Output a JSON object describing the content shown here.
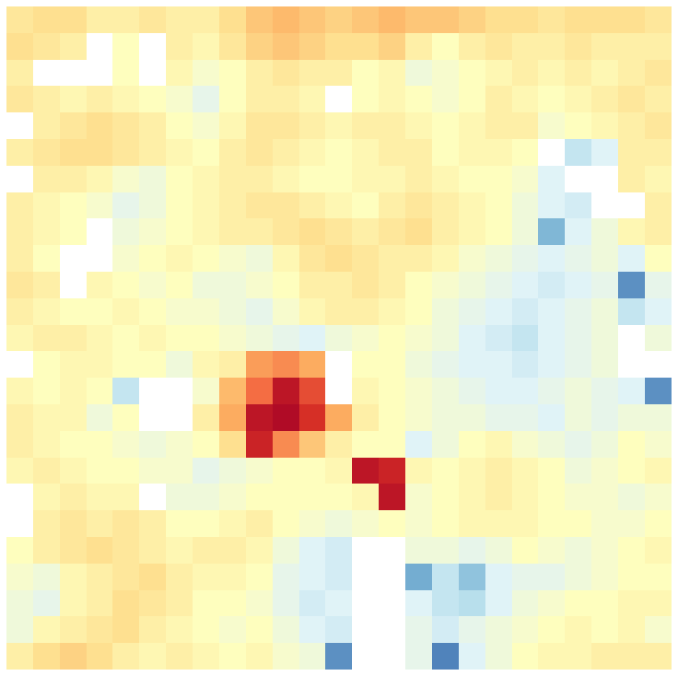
{
  "chart_data": {
    "type": "heatmap",
    "color": "RdYlBu_r",
    "tick_labels": false,
    "color_range": [
      -1,
      1
    ],
    "cells": [
      [
        0.15,
        0.2,
        0.2,
        0.1,
        0.1,
        0.15,
        0.1,
        0.1,
        0.2,
        0.3,
        0.35,
        0.3,
        0.25,
        0.3,
        0.35,
        0.3,
        0.3,
        0.25,
        0.2,
        0.2,
        0.15,
        0.2,
        0.2,
        0.2,
        0.15
      ],
      [
        0.2,
        0.15,
        0.1,
        null,
        0.0,
        null,
        0.1,
        0.05,
        0.15,
        0.25,
        0.3,
        0.25,
        0.2,
        0.2,
        0.25,
        0.1,
        0.0,
        0.1,
        0.15,
        0.1,
        0.1,
        0.15,
        0.1,
        0.1,
        0.1
      ],
      [
        0.1,
        null,
        null,
        null,
        0.0,
        null,
        0.05,
        -0.05,
        0.0,
        0.1,
        0.15,
        0.1,
        0.1,
        0.0,
        0.05,
        -0.1,
        -0.05,
        0.0,
        0.05,
        0.1,
        0.05,
        0.1,
        0.05,
        0.1,
        0.15
      ],
      [
        0.15,
        0.1,
        0.05,
        0.1,
        0.05,
        0.0,
        -0.05,
        -0.15,
        0.0,
        0.1,
        0.1,
        0.05,
        null,
        0.0,
        0.05,
        0.0,
        -0.05,
        0.0,
        0.1,
        0.05,
        0.0,
        0.05,
        0.1,
        0.15,
        0.1
      ],
      [
        null,
        0.1,
        0.15,
        0.2,
        0.15,
        0.1,
        0.0,
        -0.05,
        0.05,
        0.15,
        0.15,
        0.1,
        0.05,
        0.1,
        0.1,
        0.05,
        0.0,
        0.05,
        0.1,
        0.1,
        -0.05,
        0.0,
        0.05,
        0.1,
        0.15
      ],
      [
        0.1,
        0.15,
        0.2,
        0.2,
        0.15,
        0.1,
        0.05,
        0.0,
        0.1,
        0.15,
        0.1,
        0.05,
        0.0,
        0.05,
        0.1,
        0.1,
        0.0,
        0.05,
        0.05,
        0.0,
        null,
        -0.3,
        -0.2,
        0.1,
        0.1
      ],
      [
        null,
        0.1,
        0.1,
        0.05,
        -0.05,
        -0.1,
        0.0,
        0.05,
        0.1,
        0.1,
        0.05,
        0.0,
        0.0,
        0.05,
        0.05,
        0.1,
        0.05,
        0.0,
        0.0,
        -0.05,
        -0.2,
        null,
        null,
        0.1,
        0.05
      ],
      [
        0.1,
        0.05,
        0.0,
        -0.05,
        -0.15,
        -0.1,
        0.0,
        0.05,
        0.1,
        0.15,
        0.15,
        0.1,
        0.05,
        0.0,
        0.1,
        0.15,
        0.1,
        0.05,
        0.0,
        -0.1,
        -0.2,
        -0.25,
        null,
        null,
        0.1
      ],
      [
        0.1,
        0.05,
        0.0,
        null,
        -0.1,
        -0.05,
        0.0,
        0.05,
        0.1,
        0.1,
        0.15,
        0.2,
        0.15,
        0.1,
        0.15,
        0.2,
        0.1,
        0.05,
        0.0,
        -0.1,
        -0.55,
        -0.2,
        -0.1,
        0.05,
        0.1
      ],
      [
        0.1,
        0.0,
        null,
        null,
        -0.05,
        0.0,
        0.05,
        0.0,
        -0.05,
        -0.1,
        0.05,
        0.15,
        0.2,
        0.15,
        0.1,
        0.1,
        0.05,
        -0.05,
        -0.1,
        -0.15,
        -0.2,
        -0.15,
        -0.1,
        -0.2,
        0.0
      ],
      [
        0.15,
        0.1,
        null,
        0.05,
        0.0,
        -0.05,
        0.0,
        -0.1,
        -0.1,
        -0.05,
        0.0,
        0.1,
        0.1,
        0.15,
        0.1,
        0.0,
        -0.05,
        -0.1,
        -0.15,
        -0.2,
        -0.25,
        -0.2,
        -0.15,
        -0.7,
        -0.15
      ],
      [
        0.1,
        0.05,
        0.0,
        0.0,
        0.05,
        0.0,
        -0.05,
        -0.05,
        -0.1,
        -0.15,
        -0.05,
        0.05,
        0.1,
        0.1,
        0.05,
        0.0,
        -0.1,
        -0.15,
        -0.2,
        -0.25,
        -0.2,
        -0.15,
        -0.1,
        -0.3,
        -0.2
      ],
      [
        0.05,
        0.1,
        0.1,
        0.05,
        0.0,
        0.05,
        0.0,
        0.0,
        -0.05,
        -0.1,
        -0.15,
        -0.2,
        -0.1,
        -0.05,
        0.0,
        -0.05,
        -0.1,
        -0.2,
        -0.25,
        -0.3,
        -0.2,
        -0.15,
        -0.1,
        null,
        -0.1
      ],
      [
        null,
        0.0,
        0.05,
        0.05,
        0.0,
        0.0,
        -0.1,
        0.05,
        0.1,
        0.45,
        0.5,
        0.4,
        null,
        0.0,
        0.0,
        -0.1,
        -0.15,
        -0.2,
        -0.2,
        -0.25,
        -0.2,
        -0.15,
        -0.1,
        null,
        null
      ],
      [
        0.05,
        0.0,
        0.05,
        0.0,
        -0.3,
        null,
        null,
        -0.05,
        0.35,
        0.6,
        0.9,
        0.7,
        null,
        0.05,
        0.0,
        -0.05,
        -0.1,
        -0.15,
        -0.2,
        -0.2,
        -0.15,
        -0.1,
        -0.15,
        -0.2,
        -0.7
      ],
      [
        0.1,
        0.05,
        0.05,
        -0.1,
        0.0,
        null,
        null,
        0.1,
        0.4,
        0.9,
        0.95,
        0.8,
        0.4,
        0.1,
        0.0,
        -0.05,
        -0.1,
        -0.1,
        -0.15,
        -0.15,
        -0.2,
        -0.1,
        -0.15,
        -0.1,
        -0.1
      ],
      [
        0.1,
        0.05,
        0.0,
        0.0,
        -0.05,
        -0.1,
        -0.05,
        0.0,
        0.2,
        0.85,
        0.5,
        0.3,
        0.1,
        0.0,
        0.0,
        -0.2,
        -0.1,
        0.0,
        0.05,
        -0.05,
        -0.1,
        -0.15,
        -0.1,
        0.0,
        -0.05
      ],
      [
        0.05,
        0.1,
        0.05,
        0.0,
        0.0,
        -0.05,
        -0.05,
        -0.15,
        -0.1,
        -0.05,
        0.0,
        0.0,
        0.05,
        0.9,
        0.85,
        0.05,
        0.0,
        0.05,
        0.1,
        0.05,
        0.0,
        -0.1,
        -0.05,
        0.0,
        0.05
      ],
      [
        null,
        0.05,
        0.1,
        0.05,
        0.05,
        null,
        -0.1,
        -0.1,
        -0.05,
        0.0,
        0.0,
        0.0,
        0.0,
        0.05,
        0.9,
        -0.05,
        0.0,
        0.05,
        0.1,
        0.05,
        0.0,
        -0.05,
        -0.05,
        -0.1,
        -0.05
      ],
      [
        null,
        0.1,
        0.15,
        0.1,
        0.15,
        0.1,
        0.0,
        0.0,
        0.05,
        0.1,
        0.0,
        -0.05,
        -0.1,
        -0.05,
        0.0,
        -0.05,
        0.0,
        0.05,
        0.05,
        0.05,
        0.0,
        0.0,
        -0.05,
        -0.05,
        0.0
      ],
      [
        0.0,
        0.1,
        0.15,
        0.2,
        0.15,
        0.1,
        0.05,
        0.1,
        0.1,
        0.05,
        -0.1,
        -0.2,
        -0.25,
        null,
        null,
        -0.1,
        -0.1,
        -0.15,
        -0.1,
        0.0,
        -0.05,
        -0.1,
        -0.05,
        0.0,
        0.05
      ],
      [
        -0.05,
        -0.1,
        0.05,
        0.1,
        0.15,
        0.2,
        0.1,
        0.05,
        0.05,
        0.0,
        -0.15,
        -0.2,
        -0.25,
        null,
        null,
        -0.6,
        -0.3,
        -0.5,
        -0.2,
        -0.15,
        -0.15,
        -0.1,
        -0.05,
        0.0,
        0.0
      ],
      [
        -0.1,
        -0.15,
        0.05,
        0.1,
        0.2,
        0.15,
        0.1,
        0.0,
        0.0,
        -0.05,
        -0.15,
        -0.25,
        -0.2,
        null,
        null,
        -0.2,
        -0.3,
        -0.35,
        -0.2,
        -0.1,
        -0.05,
        0.0,
        0.0,
        0.05,
        0.05
      ],
      [
        -0.1,
        0.05,
        0.1,
        0.15,
        0.2,
        0.1,
        0.05,
        0.0,
        -0.05,
        0.0,
        -0.1,
        -0.2,
        -0.25,
        null,
        null,
        -0.15,
        -0.25,
        -0.15,
        -0.1,
        -0.05,
        0.0,
        0.05,
        0.0,
        0.05,
        -0.05
      ],
      [
        0.1,
        0.2,
        0.25,
        0.2,
        0.1,
        0.05,
        0.1,
        0.05,
        0.0,
        0.05,
        -0.05,
        -0.1,
        -0.7,
        null,
        null,
        -0.15,
        -0.75,
        -0.2,
        -0.1,
        0.0,
        0.05,
        0.05,
        0.1,
        0.1,
        0.1
      ]
    ]
  }
}
